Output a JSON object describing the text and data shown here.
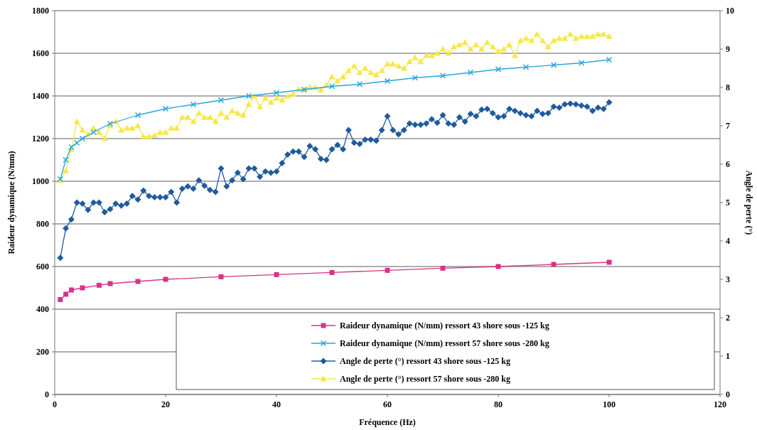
{
  "chart_data": {
    "type": "line",
    "xlabel": "Fréquence (Hz)",
    "ylabel": "Raideur dynamique (N/mm)",
    "y2label": "Angle de perte (°)",
    "xlim": [
      0,
      120
    ],
    "xticks": [
      0,
      20,
      40,
      60,
      80,
      100,
      120
    ],
    "ylim": [
      0,
      1800
    ],
    "yticks": [
      0,
      200,
      400,
      600,
      800,
      1000,
      1200,
      1400,
      1600,
      1800
    ],
    "y2lim": [
      0,
      10
    ],
    "y2ticks": [
      0,
      1,
      2,
      3,
      4,
      5,
      6,
      7,
      8,
      9,
      10
    ],
    "grid": "y",
    "legend": "bottom right",
    "series": [
      {
        "name": "Raideur dynamique (N/mm) ressort 43 shore sous -125 kg",
        "color": "#d6338a",
        "marker": "square",
        "x": [
          1,
          2,
          3,
          5,
          8,
          10,
          15,
          20,
          30,
          40,
          50,
          60,
          70,
          80,
          90,
          100
        ],
        "values": [
          445,
          470,
          490,
          500,
          512,
          520,
          530,
          540,
          552,
          562,
          572,
          582,
          592,
          600,
          610,
          620
        ]
      },
      {
        "name": "Raideur dynamique (N/mm) ressort 57 shore sous -280 kg",
        "color": "#2aa5dc",
        "marker": "cross",
        "x": [
          1,
          2,
          3,
          4,
          5,
          7,
          10,
          15,
          20,
          25,
          30,
          35,
          40,
          45,
          50,
          55,
          60,
          65,
          70,
          75,
          80,
          85,
          90,
          95,
          100
        ],
        "values": [
          1010,
          1100,
          1160,
          1180,
          1200,
          1230,
          1270,
          1310,
          1340,
          1360,
          1380,
          1400,
          1415,
          1430,
          1445,
          1455,
          1470,
          1485,
          1495,
          1510,
          1525,
          1535,
          1545,
          1555,
          1570
        ]
      },
      {
        "name": "Angle de perte (°) ressort 43 shore sous -125 kg",
        "color": "#1f5a9e",
        "marker": "diamond",
        "axis": "y2",
        "x": [
          1,
          2,
          3,
          4,
          5,
          6,
          7,
          8,
          9,
          10,
          11,
          12,
          13,
          14,
          15,
          16,
          17,
          18,
          19,
          20,
          21,
          22,
          23,
          24,
          25,
          26,
          27,
          28,
          29,
          30,
          31,
          32,
          33,
          34,
          35,
          36,
          37,
          38,
          39,
          40,
          41,
          42,
          43,
          44,
          45,
          46,
          47,
          48,
          49,
          50,
          51,
          52,
          53,
          54,
          55,
          56,
          57,
          58,
          59,
          60,
          61,
          62,
          63,
          64,
          65,
          66,
          67,
          68,
          69,
          70,
          71,
          72,
          73,
          74,
          75,
          76,
          77,
          78,
          79,
          80,
          81,
          82,
          83,
          84,
          85,
          86,
          87,
          88,
          89,
          90,
          91,
          92,
          93,
          94,
          95,
          96,
          97,
          98,
          99,
          100
        ],
        "values": [
          3.56,
          4.33,
          4.56,
          5.0,
          4.97,
          4.81,
          5.0,
          5.0,
          4.75,
          4.83,
          4.97,
          4.92,
          4.97,
          5.17,
          5.08,
          5.31,
          5.17,
          5.14,
          5.14,
          5.14,
          5.28,
          5.0,
          5.36,
          5.42,
          5.36,
          5.58,
          5.44,
          5.33,
          5.28,
          5.89,
          5.42,
          5.58,
          5.78,
          5.61,
          5.89,
          5.89,
          5.67,
          5.81,
          5.78,
          5.81,
          6.03,
          6.25,
          6.33,
          6.33,
          6.19,
          6.47,
          6.39,
          6.14,
          6.11,
          6.39,
          6.5,
          6.39,
          6.89,
          6.56,
          6.53,
          6.64,
          6.64,
          6.61,
          6.89,
          7.25,
          6.89,
          6.78,
          6.89,
          7.06,
          7.03,
          7.03,
          7.06,
          7.17,
          7.08,
          7.28,
          7.06,
          7.03,
          7.22,
          7.11,
          7.31,
          7.25,
          7.42,
          7.44,
          7.33,
          7.22,
          7.25,
          7.44,
          7.39,
          7.33,
          7.28,
          7.25,
          7.39,
          7.31,
          7.33,
          7.5,
          7.47,
          7.56,
          7.58,
          7.56,
          7.53,
          7.5,
          7.39,
          7.47,
          7.44,
          7.61
        ]
      },
      {
        "name": "Angle de perte (°) ressort 57 shore sous -280 kg",
        "color": "#f5e84a",
        "marker": "triangle",
        "axis": "y2",
        "x": [
          1,
          2,
          3,
          4,
          5,
          6,
          7,
          8,
          9,
          10,
          11,
          12,
          13,
          14,
          15,
          16,
          17,
          18,
          19,
          20,
          21,
          22,
          23,
          24,
          25,
          26,
          27,
          28,
          29,
          30,
          31,
          32,
          33,
          34,
          35,
          36,
          37,
          38,
          39,
          40,
          41,
          42,
          43,
          44,
          45,
          46,
          47,
          48,
          49,
          50,
          51,
          52,
          53,
          54,
          55,
          56,
          57,
          58,
          59,
          60,
          61,
          62,
          63,
          64,
          65,
          66,
          67,
          68,
          69,
          70,
          71,
          72,
          73,
          74,
          75,
          76,
          77,
          78,
          79,
          80,
          81,
          82,
          83,
          84,
          85,
          86,
          87,
          88,
          89,
          90,
          91,
          92,
          93,
          94,
          95,
          96,
          97,
          98,
          99,
          100
        ],
        "values": [
          5.58,
          5.83,
          6.39,
          7.11,
          6.89,
          6.78,
          6.94,
          6.83,
          6.67,
          7.0,
          7.11,
          6.89,
          6.94,
          6.94,
          7.0,
          6.72,
          6.72,
          6.75,
          6.83,
          6.83,
          6.94,
          6.94,
          7.22,
          7.22,
          7.11,
          7.33,
          7.22,
          7.22,
          7.11,
          7.33,
          7.22,
          7.39,
          7.33,
          7.28,
          7.56,
          7.78,
          7.5,
          7.72,
          7.61,
          7.72,
          7.67,
          7.78,
          7.83,
          7.94,
          7.94,
          8.0,
          8.0,
          7.94,
          8.06,
          8.28,
          8.17,
          8.28,
          8.44,
          8.56,
          8.39,
          8.5,
          8.39,
          8.33,
          8.44,
          8.61,
          8.61,
          8.56,
          8.5,
          8.67,
          8.78,
          8.67,
          8.83,
          8.83,
          8.89,
          9.0,
          8.89,
          9.06,
          9.11,
          9.17,
          9.0,
          9.11,
          9.0,
          9.17,
          9.06,
          8.94,
          9.0,
          9.11,
          8.83,
          9.22,
          9.28,
          9.22,
          9.39,
          9.22,
          9.06,
          9.22,
          9.28,
          9.28,
          9.39,
          9.28,
          9.33,
          9.33,
          9.33,
          9.39,
          9.39,
          9.33
        ]
      }
    ]
  }
}
